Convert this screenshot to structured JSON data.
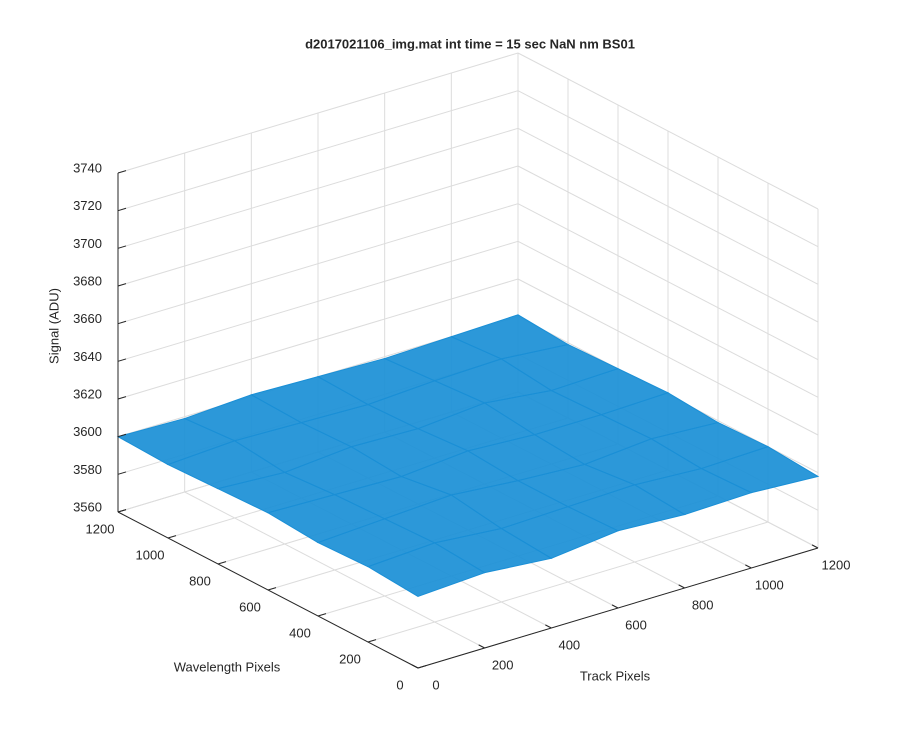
{
  "chart_data": {
    "type": "surface",
    "title": "d2017021106_img.mat int time = 15 sec  NaN nm BS01",
    "xlabel": "Track Pixels",
    "ylabel": "Wavelength Pixels",
    "zlabel": "Signal (ADU)",
    "x": [
      0,
      200,
      400,
      600,
      800,
      1000,
      1200
    ],
    "y": [
      0,
      200,
      400,
      600,
      800,
      1000,
      1200
    ],
    "z": [
      [
        3598,
        3600,
        3597,
        3601,
        3599,
        3600,
        3598
      ],
      [
        3600,
        3602,
        3599,
        3600,
        3601,
        3599,
        3600
      ],
      [
        3599,
        3601,
        3603,
        3600,
        3598,
        3601,
        3599
      ],
      [
        3601,
        3600,
        3599,
        3602,
        3600,
        3600,
        3601
      ],
      [
        3600,
        3598,
        3601,
        3600,
        3603,
        3599,
        3600
      ],
      [
        3599,
        3601,
        3600,
        3599,
        3601,
        3602,
        3599
      ],
      [
        3600,
        3599,
        3601,
        3600,
        3599,
        3600,
        3601
      ]
    ],
    "xlim": [
      0,
      1200
    ],
    "ylim": [
      0,
      1200
    ],
    "zlim": [
      3560,
      3740
    ],
    "xticks": [
      0,
      200,
      400,
      600,
      800,
      1000,
      1200
    ],
    "yticks": [
      0,
      200,
      400,
      600,
      800,
      1000,
      1200
    ],
    "zticks": [
      3560,
      3580,
      3600,
      3620,
      3640,
      3660,
      3680,
      3700,
      3720,
      3740
    ],
    "grid": true,
    "color": "#1a8fd6"
  }
}
